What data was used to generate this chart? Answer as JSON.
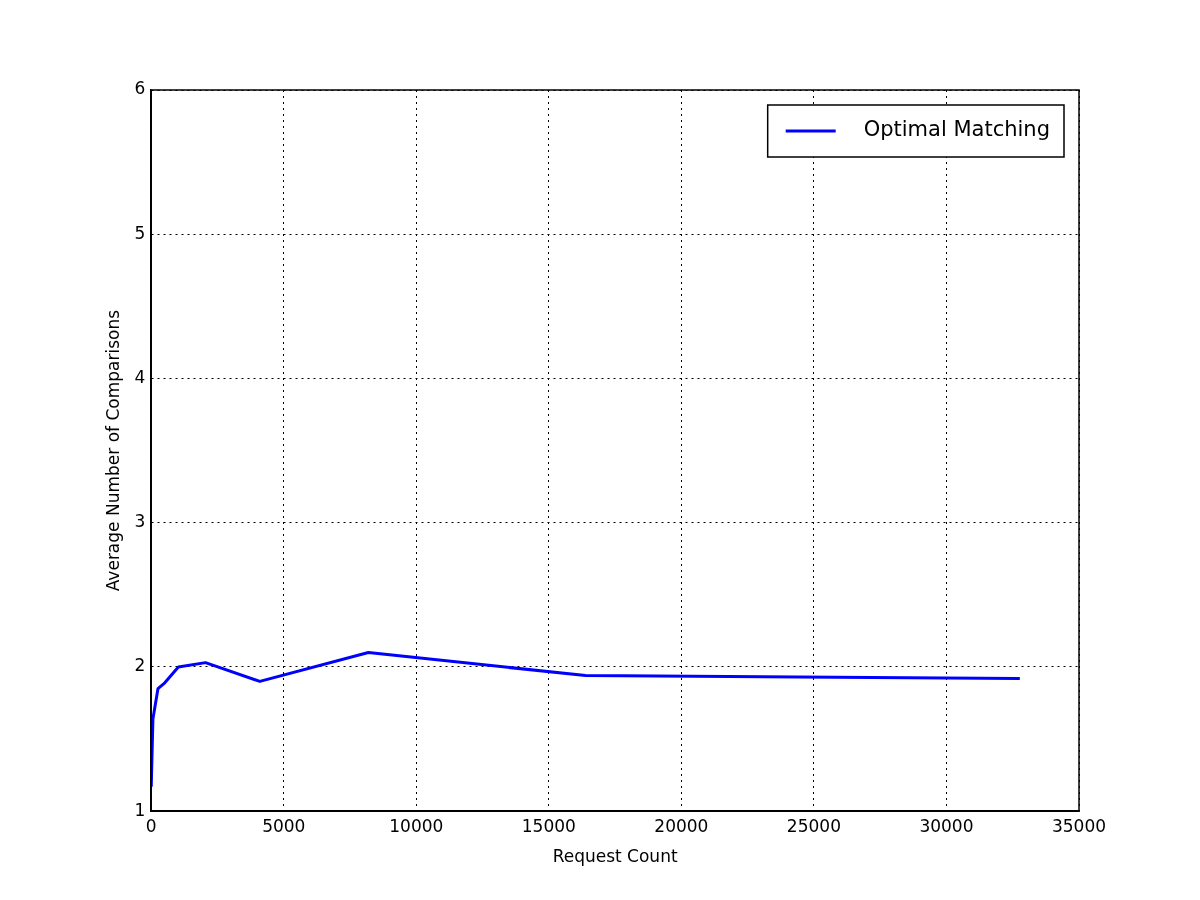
{
  "chart_data": {
    "type": "line",
    "xlabel": "Request Count",
    "ylabel": "Average Number of Comparisons",
    "series": [
      {
        "name": "Optimal Matching",
        "color": "#0000ff",
        "x": [
          1,
          64,
          256,
          512,
          1024,
          2048,
          4096,
          8192,
          16384,
          32768
        ],
        "values": [
          1.17,
          1.64,
          1.85,
          1.89,
          2.0,
          2.03,
          1.9,
          2.1,
          1.94,
          1.92
        ]
      }
    ],
    "xlim": [
      0,
      35000
    ],
    "xticks": [
      0,
      5000,
      10000,
      15000,
      20000,
      25000,
      30000,
      35000
    ],
    "ylim": [
      1,
      6
    ],
    "yticks": [
      1,
      2,
      3,
      4,
      5,
      6
    ],
    "grid": true,
    "legend": "top right",
    "marker": "none",
    "line_style": "solid"
  }
}
